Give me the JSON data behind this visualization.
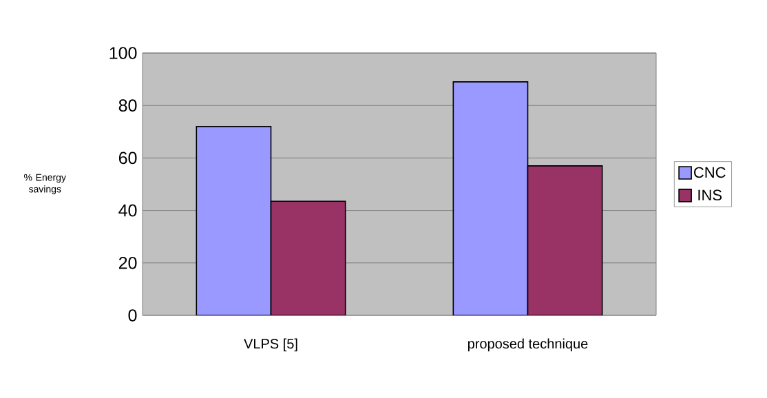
{
  "chart_data": {
    "type": "bar",
    "ylabel": "% Energy savings",
    "categories": [
      "VLPS [5]",
      "proposed technique"
    ],
    "series": [
      {
        "name": "CNC",
        "color": "#9999ff",
        "values": [
          72,
          89
        ]
      },
      {
        "name": "INS",
        "color": "#993366",
        "values": [
          43.5,
          57
        ]
      }
    ],
    "ylim": [
      0,
      100
    ],
    "yticks": [
      0,
      20,
      40,
      60,
      80,
      100
    ],
    "grid": "y",
    "legend": "right"
  }
}
